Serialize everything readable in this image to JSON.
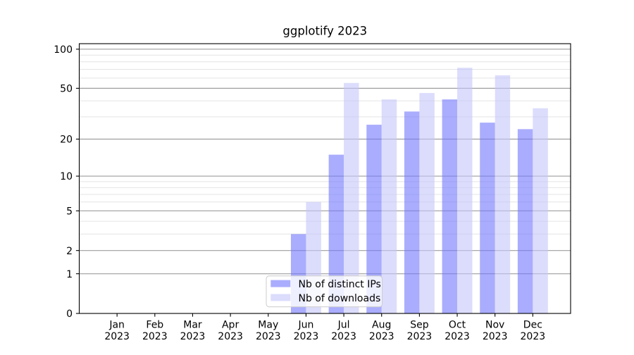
{
  "chart_data": {
    "type": "bar",
    "title": "ggplotify 2023",
    "categories": [
      "Jan 2023",
      "Feb 2023",
      "Mar 2023",
      "Apr 2023",
      "May 2023",
      "Jun 2023",
      "Jul 2023",
      "Aug 2023",
      "Sep 2023",
      "Oct 2023",
      "Nov 2023",
      "Dec 2023"
    ],
    "x_tick_months": [
      "Jan",
      "Feb",
      "Mar",
      "Apr",
      "May",
      "Jun",
      "Jul",
      "Aug",
      "Sep",
      "Oct",
      "Nov",
      "Dec"
    ],
    "x_tick_year": "2023",
    "series": [
      {
        "name": "Nb of distinct IPs",
        "color": "#aaadfd",
        "values": [
          0,
          0,
          0,
          0,
          0,
          3,
          15,
          26,
          33,
          41,
          27,
          24
        ]
      },
      {
        "name": "Nb of downloads",
        "color": "#dcddfc",
        "values": [
          0,
          0,
          0,
          0,
          0,
          6,
          55,
          41,
          46,
          72,
          63,
          35
        ]
      }
    ],
    "xlabel": "",
    "ylabel": "",
    "yscale": "log1p",
    "ylim": [
      0,
      110.2
    ],
    "yticks_major": [
      0,
      1,
      2,
      5,
      10,
      20,
      50,
      100
    ],
    "yticks_minor": [
      3,
      4,
      6,
      7,
      8,
      9,
      30,
      40,
      60,
      70,
      80,
      90
    ],
    "grid": true,
    "legend_position": "lower center"
  },
  "colors": {
    "background": "#ffffff",
    "bar_distinct_ips": "#aaadfd",
    "bar_downloads": "#dcddfc",
    "major_grid": "#9e9e9e",
    "minor_grid": "#e4e4e4",
    "spine": "#000000",
    "text": "#000000",
    "legend_border": "#cccccc",
    "legend_background": "rgba(255,255,255,0.8)"
  }
}
